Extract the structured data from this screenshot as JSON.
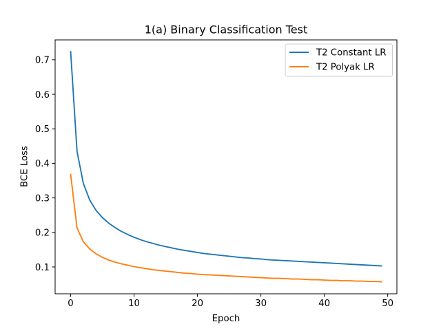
{
  "chart_data": {
    "type": "line",
    "title": "1(a) Binary Classification Test",
    "xlabel": "Epoch",
    "ylabel": "BCE Loss",
    "xlim": [
      -2.45,
      51.45
    ],
    "ylim": [
      0.0223,
      0.7575
    ],
    "xticks": [
      0,
      10,
      20,
      30,
      40,
      50
    ],
    "yticks": [
      0.1,
      0.2,
      0.3,
      0.4,
      0.5,
      0.6,
      0.7
    ],
    "grid": false,
    "legend_position": "top-right",
    "series": [
      {
        "name": "T2 Constant LR",
        "color": "#1f77b4",
        "x": [
          0,
          1,
          2,
          3,
          4,
          5,
          6,
          7,
          8,
          9,
          10,
          11,
          12,
          13,
          14,
          15,
          16,
          17,
          18,
          19,
          20,
          21,
          22,
          23,
          24,
          25,
          26,
          27,
          28,
          29,
          30,
          31,
          32,
          33,
          34,
          35,
          36,
          37,
          38,
          39,
          40,
          41,
          42,
          43,
          44,
          45,
          46,
          47,
          48,
          49
        ],
        "y": [
          0.723,
          0.435,
          0.342,
          0.294,
          0.264,
          0.243,
          0.227,
          0.214,
          0.203,
          0.194,
          0.186,
          0.179,
          0.173,
          0.168,
          0.163,
          0.159,
          0.155,
          0.151,
          0.148,
          0.145,
          0.142,
          0.139,
          0.137,
          0.135,
          0.133,
          0.131,
          0.129,
          0.127,
          0.126,
          0.124,
          0.123,
          0.121,
          0.12,
          0.119,
          0.118,
          0.117,
          0.116,
          0.115,
          0.114,
          0.113,
          0.112,
          0.111,
          0.11,
          0.109,
          0.108,
          0.107,
          0.106,
          0.105,
          0.104,
          0.103
        ]
      },
      {
        "name": "T2 Polyak LR",
        "color": "#ff7f0e",
        "x": [
          0,
          1,
          2,
          3,
          4,
          5,
          6,
          7,
          8,
          9,
          10,
          11,
          12,
          13,
          14,
          15,
          16,
          17,
          18,
          19,
          20,
          21,
          22,
          23,
          24,
          25,
          26,
          27,
          28,
          29,
          30,
          31,
          32,
          33,
          34,
          35,
          36,
          37,
          38,
          39,
          40,
          41,
          42,
          43,
          44,
          45,
          46,
          47,
          48,
          49
        ],
        "y": [
          0.368,
          0.213,
          0.173,
          0.152,
          0.138,
          0.128,
          0.12,
          0.114,
          0.109,
          0.105,
          0.101,
          0.098,
          0.095,
          0.092,
          0.09,
          0.088,
          0.086,
          0.084,
          0.082,
          0.081,
          0.079,
          0.078,
          0.077,
          0.076,
          0.075,
          0.074,
          0.073,
          0.072,
          0.071,
          0.07,
          0.069,
          0.068,
          0.067,
          0.067,
          0.066,
          0.065,
          0.065,
          0.064,
          0.063,
          0.063,
          0.062,
          0.061,
          0.061,
          0.06,
          0.06,
          0.059,
          0.059,
          0.058,
          0.058,
          0.057
        ]
      }
    ]
  }
}
